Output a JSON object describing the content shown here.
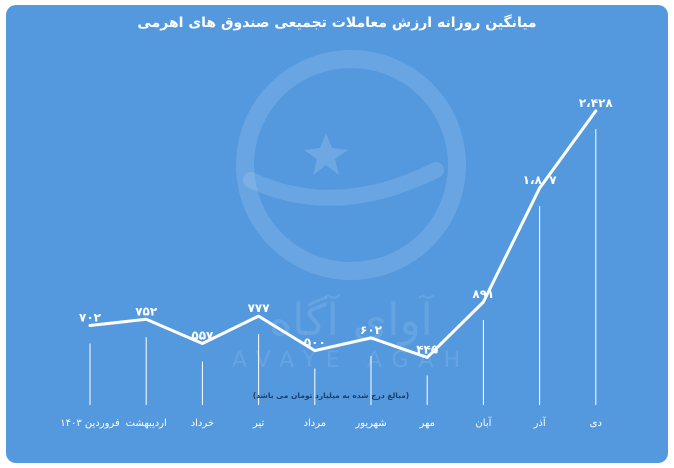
{
  "chart_data": {
    "type": "line",
    "title": "میانگین روزانه ارزش معاملات تجمیعی صندوق های اهرمی",
    "note": "(مبالغ درج شده به میلیارد تومان می باشد)",
    "categories": [
      "فروردین ۱۴۰۳",
      "اردیبهشت",
      "خرداد",
      "تیر",
      "مرداد",
      "شهریور",
      "مهر",
      "آبان",
      "آذر",
      "دی"
    ],
    "values": [
      702,
      752,
      557,
      777,
      500,
      602,
      445,
      891,
      1807,
      2428
    ],
    "value_labels": [
      "۷۰۲",
      "۷۵۲",
      "۵۵۷",
      "۷۷۷",
      "۵۰۰",
      "۶۰۲",
      "۴۴۵",
      "۸۹۱",
      "۱،۸۰۷",
      "۲،۴۲۸"
    ],
    "grid": false,
    "line_color": "#ffffff",
    "background_color": "#5499de"
  },
  "watermark": {
    "logo_text": "آوای آگاه",
    "latin_text": "AVAYE AGAH"
  }
}
